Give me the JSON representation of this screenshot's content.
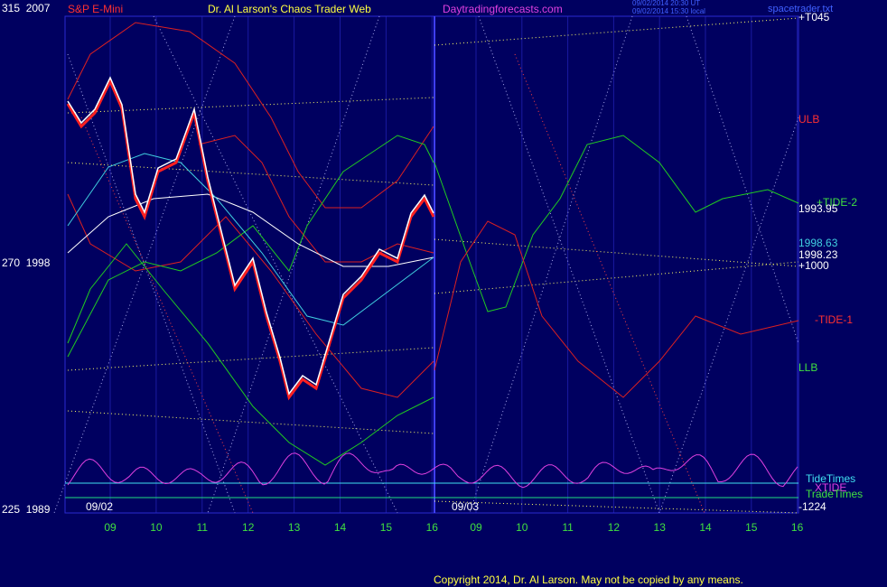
{
  "header": {
    "symbol": "S&P E-Mini",
    "title": "Dr. Al Larson's Chaos Trader Web",
    "site": "Daytradingforecasts.com",
    "time_ut": "09/02/2014 20:30 UT",
    "time_local": "09/02/2014 15:30 local",
    "file": "spacetrader.txt"
  },
  "left_axis": [
    "315  2007",
    "270  1998",
    "225  1989"
  ],
  "dates": [
    "09/02",
    "09/03"
  ],
  "hours": [
    "09",
    "10",
    "11",
    "12",
    "13",
    "14",
    "15",
    "16",
    "09",
    "10",
    "11",
    "12",
    "13",
    "14",
    "15",
    "16"
  ],
  "right_labels": {
    "t045": "+T045",
    "ulb": "ULB",
    "tide2": "+TIDE-2",
    "p1": "1993.95",
    "p2": "1998.63",
    "p3": "1998.23",
    "t1000": "+1000",
    "tide1": "-TIDE-1",
    "llb": "LLB",
    "tidetimes": "TideTimes",
    "xtide": "XTIDE",
    "tradetimes": "TradeTimes",
    "t1224": "-1224"
  },
  "footer": "Copyright 2014, Dr. Al Larson. May not be copied by any means."
}
